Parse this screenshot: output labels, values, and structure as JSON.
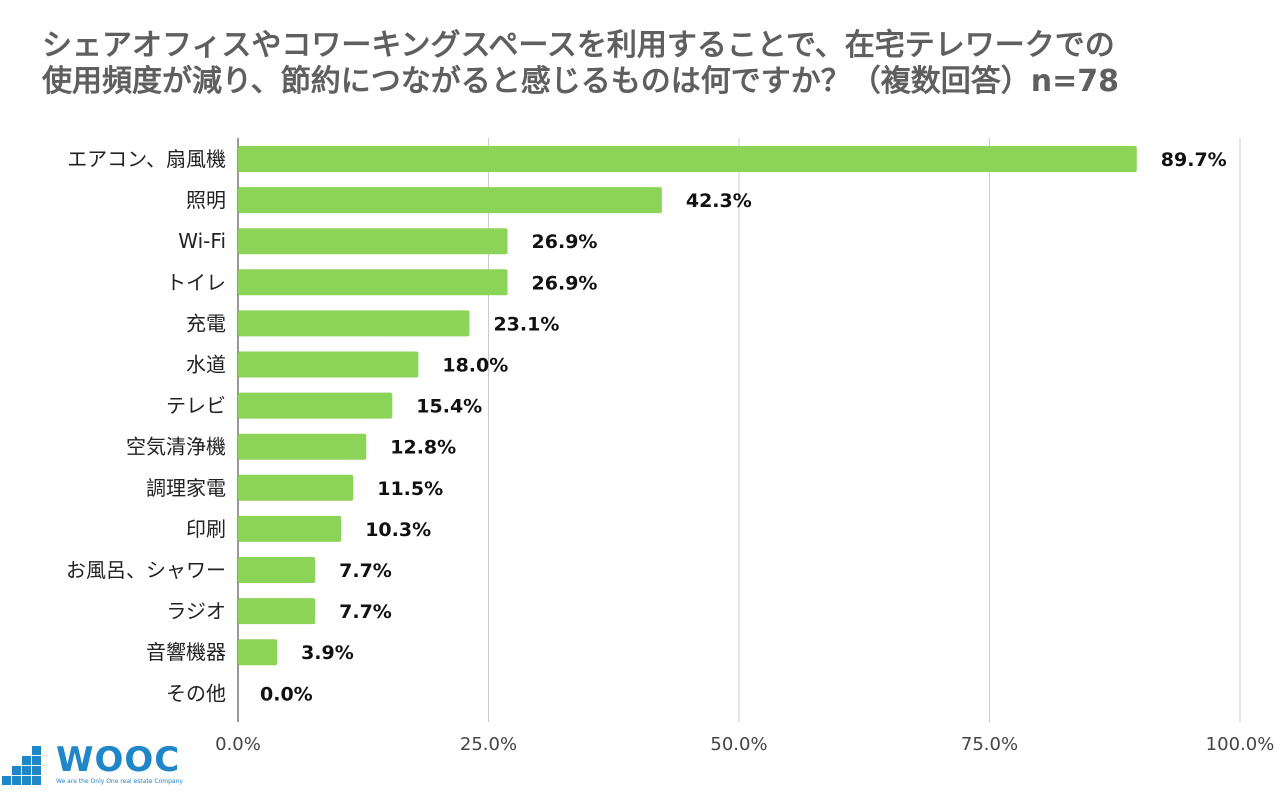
{
  "chart_data": {
    "type": "bar",
    "orientation": "horizontal",
    "title_lines": [
      "シェアオフィスやコワーキングスペースを利用することで、在宅テレワークでの",
      "使用頻度が減り、節約につながると感じるものは何ですか？（複数回答）n=78"
    ],
    "categories": [
      "エアコン、扇風機",
      "照明",
      "Wi-Fi",
      "トイレ",
      "充電",
      "水道",
      "テレビ",
      "空気清浄機",
      "調理家電",
      "印刷",
      "お風呂、シャワー",
      "ラジオ",
      "音響機器",
      "その他"
    ],
    "values": [
      89.7,
      42.3,
      26.9,
      26.9,
      23.1,
      18.0,
      15.4,
      12.8,
      11.5,
      10.3,
      7.7,
      7.7,
      3.9,
      0.0
    ],
    "value_labels": [
      "89.7%",
      "42.3%",
      "26.9%",
      "26.9%",
      "23.1%",
      "18.0%",
      "15.4%",
      "12.8%",
      "11.5%",
      "10.3%",
      "7.7%",
      "7.7%",
      "3.9%",
      "0.0%"
    ],
    "x_ticks": [
      0,
      25,
      50,
      75,
      100
    ],
    "x_tick_labels": [
      "0.0%",
      "25.0%",
      "50.0%",
      "75.0%",
      "100.0%"
    ],
    "xlim": [
      0,
      100
    ],
    "grid": true,
    "bar_color": "#8cd457",
    "grid_color": "#cccccc"
  },
  "logo": {
    "name": "WOOC",
    "tagline": "We are the Only One real estate Company",
    "color": "#1f86c8"
  }
}
